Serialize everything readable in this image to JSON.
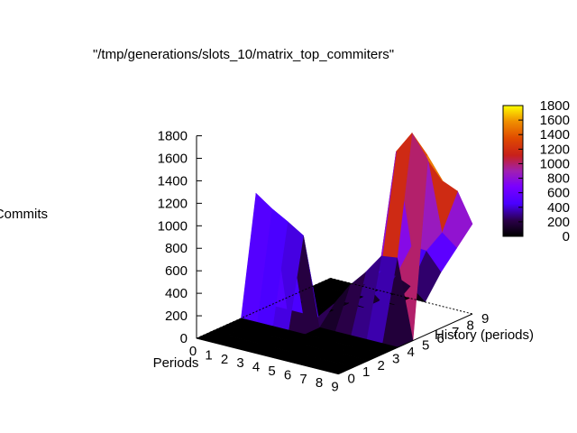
{
  "chart_data": {
    "type": "surface",
    "title": "\"/tmp/generations/slots_10/matrix_top_commiters\"",
    "xlabel": "Periods",
    "ylabel": "History (periods)",
    "zlabel": "Commits",
    "x_ticks": [
      "0",
      "1",
      "2",
      "3",
      "4",
      "5",
      "6",
      "7",
      "8",
      "9"
    ],
    "y_ticks": [
      "0",
      "1",
      "2",
      "3",
      "4",
      "5",
      "6",
      "7",
      "8",
      "9"
    ],
    "z_ticks": [
      "0",
      "200",
      "400",
      "600",
      "800",
      "1000",
      "1200",
      "1400",
      "1600",
      "1800"
    ],
    "colorbar_ticks": [
      "0",
      "200",
      "400",
      "600",
      "800",
      "1000",
      "1200",
      "1400",
      "1600",
      "1800"
    ],
    "xlim": [
      0,
      9
    ],
    "ylim": [
      0,
      9
    ],
    "zlim": [
      0,
      1800
    ],
    "colormap": "gnuplot pm3d (black-blue-purple-red-orange-yellow)",
    "grid": false,
    "legend": "colorbar right",
    "z": [
      [
        0,
        0,
        0,
        0,
        1050,
        0,
        0,
        0,
        0,
        0
      ],
      [
        0,
        0,
        0,
        0,
        950,
        0,
        0,
        0,
        0,
        0
      ],
      [
        0,
        0,
        0,
        0,
        870,
        0,
        0,
        0,
        0,
        0
      ],
      [
        0,
        0,
        0,
        0,
        780,
        0,
        0,
        0,
        0,
        0
      ],
      [
        0,
        0,
        0,
        0,
        0,
        150,
        100,
        0,
        0,
        0
      ],
      [
        0,
        0,
        0,
        0,
        0,
        350,
        300,
        100,
        0,
        0
      ],
      [
        0,
        0,
        0,
        0,
        0,
        500,
        450,
        350,
        200,
        0
      ],
      [
        0,
        0,
        0,
        0,
        0,
        680,
        1550,
        650,
        550,
        300
      ],
      [
        0,
        0,
        0,
        0,
        0,
        700,
        1750,
        1500,
        750,
        550
      ],
      [
        0,
        0,
        0,
        0,
        0,
        0,
        1550,
        1300,
        1150,
        800
      ]
    ]
  }
}
